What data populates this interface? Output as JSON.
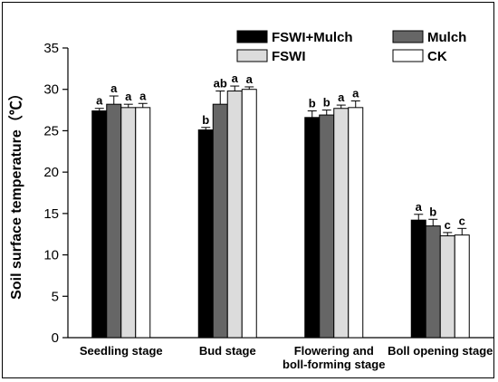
{
  "chart_data": {
    "type": "bar",
    "ylabel": "Soil surface temperature（℃）",
    "xlabel": "",
    "ylim": [
      0,
      35
    ],
    "yticks": [
      0,
      5,
      10,
      15,
      20,
      25,
      30,
      35
    ],
    "categories": [
      [
        "Seedling stage"
      ],
      [
        "Bud stage"
      ],
      [
        "Flowering and",
        "boll-forming stage"
      ],
      [
        "Boll opening stage"
      ]
    ],
    "legend_placement": "top-right",
    "series": [
      {
        "name": "FSWI+Mulch",
        "color": "#000000",
        "values": [
          27.4,
          25.1,
          26.6,
          14.2
        ],
        "errors": [
          0.3,
          0.3,
          0.8,
          0.7
        ],
        "letters": [
          "a",
          "b",
          "b",
          "a"
        ]
      },
      {
        "name": "Mulch",
        "color": "#666666",
        "values": [
          28.2,
          28.2,
          26.9,
          13.5
        ],
        "errors": [
          1.0,
          1.6,
          0.6,
          0.8
        ],
        "letters": [
          "a",
          "ab",
          "b",
          "b"
        ]
      },
      {
        "name": "FSWI",
        "color": "#dcdcdc",
        "values": [
          27.8,
          29.8,
          27.7,
          12.3
        ],
        "errors": [
          0.4,
          0.6,
          0.4,
          0.4
        ],
        "letters": [
          "a",
          "a",
          "a",
          "c"
        ]
      },
      {
        "name": "CK",
        "color": "#ffffff",
        "values": [
          27.8,
          30.0,
          27.8,
          12.4
        ],
        "errors": [
          0.5,
          0.3,
          0.8,
          0.8
        ],
        "letters": [
          "a",
          "a",
          "a",
          "c"
        ]
      }
    ]
  }
}
